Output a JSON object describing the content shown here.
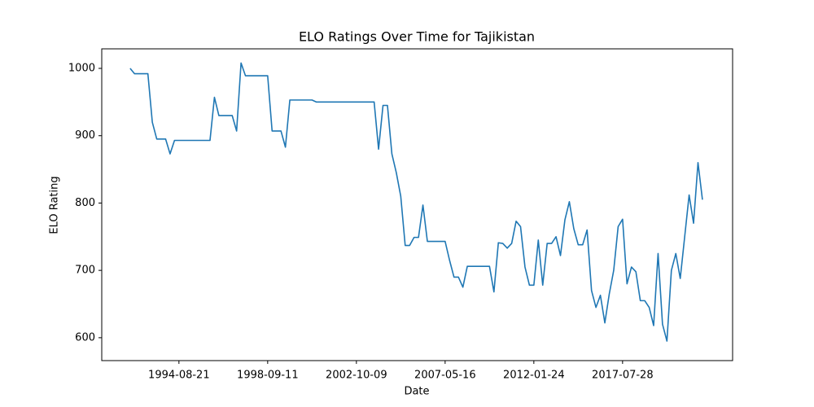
{
  "chart_data": {
    "type": "line",
    "title": "ELO Ratings Over Time for Tajikistan",
    "x_label": "Date",
    "y_label": "ELO Rating",
    "categories": [
      null,
      null,
      null,
      null,
      null,
      null,
      null,
      null,
      null,
      null,
      null,
      "1994-08-21",
      null,
      null,
      null,
      null,
      null,
      null,
      null,
      null,
      null,
      null,
      null,
      null,
      null,
      null,
      null,
      null,
      null,
      null,
      null,
      "1998-09-11",
      null,
      null,
      null,
      null,
      null,
      null,
      null,
      null,
      null,
      null,
      null,
      null,
      null,
      null,
      null,
      null,
      null,
      null,
      null,
      "2002-10-09",
      null,
      null,
      null,
      null,
      null,
      null,
      null,
      null,
      null,
      null,
      null,
      null,
      null,
      null,
      null,
      null,
      null,
      null,
      null,
      "2007-05-16",
      null,
      null,
      null,
      null,
      null,
      null,
      null,
      null,
      null,
      null,
      null,
      null,
      null,
      null,
      null,
      null,
      null,
      null,
      null,
      "2012-01-24",
      null,
      null,
      null,
      null,
      null,
      null,
      null,
      null,
      null,
      null,
      null,
      null,
      null,
      null,
      null,
      null,
      null,
      null,
      null,
      "2017-07-28",
      null,
      null,
      null,
      null,
      null,
      null,
      null,
      null,
      null,
      null,
      null,
      null,
      null,
      null,
      null,
      null,
      null,
      null
    ],
    "values": [
      1000,
      992,
      992,
      992,
      992,
      920,
      895,
      895,
      895,
      873,
      893,
      893,
      893,
      893,
      893,
      893,
      893,
      893,
      893,
      957,
      930,
      930,
      930,
      930,
      907,
      1008,
      989,
      989,
      989,
      989,
      989,
      989,
      907,
      907,
      907,
      883,
      953,
      953,
      953,
      953,
      953,
      953,
      950,
      950,
      950,
      950,
      950,
      950,
      950,
      950,
      950,
      950,
      950,
      950,
      950,
      950,
      880,
      945,
      945,
      873,
      845,
      810,
      737,
      737,
      749,
      749,
      797,
      743,
      743,
      743,
      743,
      743,
      715,
      690,
      690,
      675,
      706,
      706,
      706,
      706,
      706,
      706,
      668,
      741,
      740,
      733,
      740,
      773,
      765,
      705,
      678,
      678,
      745,
      678,
      740,
      740,
      750,
      722,
      775,
      802,
      762,
      738,
      738,
      760,
      670,
      645,
      663,
      622,
      665,
      700,
      765,
      776,
      680,
      705,
      698,
      655,
      655,
      645,
      618,
      725,
      620,
      595,
      700,
      725,
      688,
      750,
      812,
      770,
      860,
      805
    ],
    "color": "#1f77b4",
    "xlim": [
      -6.4,
      135.8
    ],
    "ylim": [
      566,
      1029
    ],
    "yticks": [
      600,
      700,
      800,
      900,
      1000
    ]
  }
}
